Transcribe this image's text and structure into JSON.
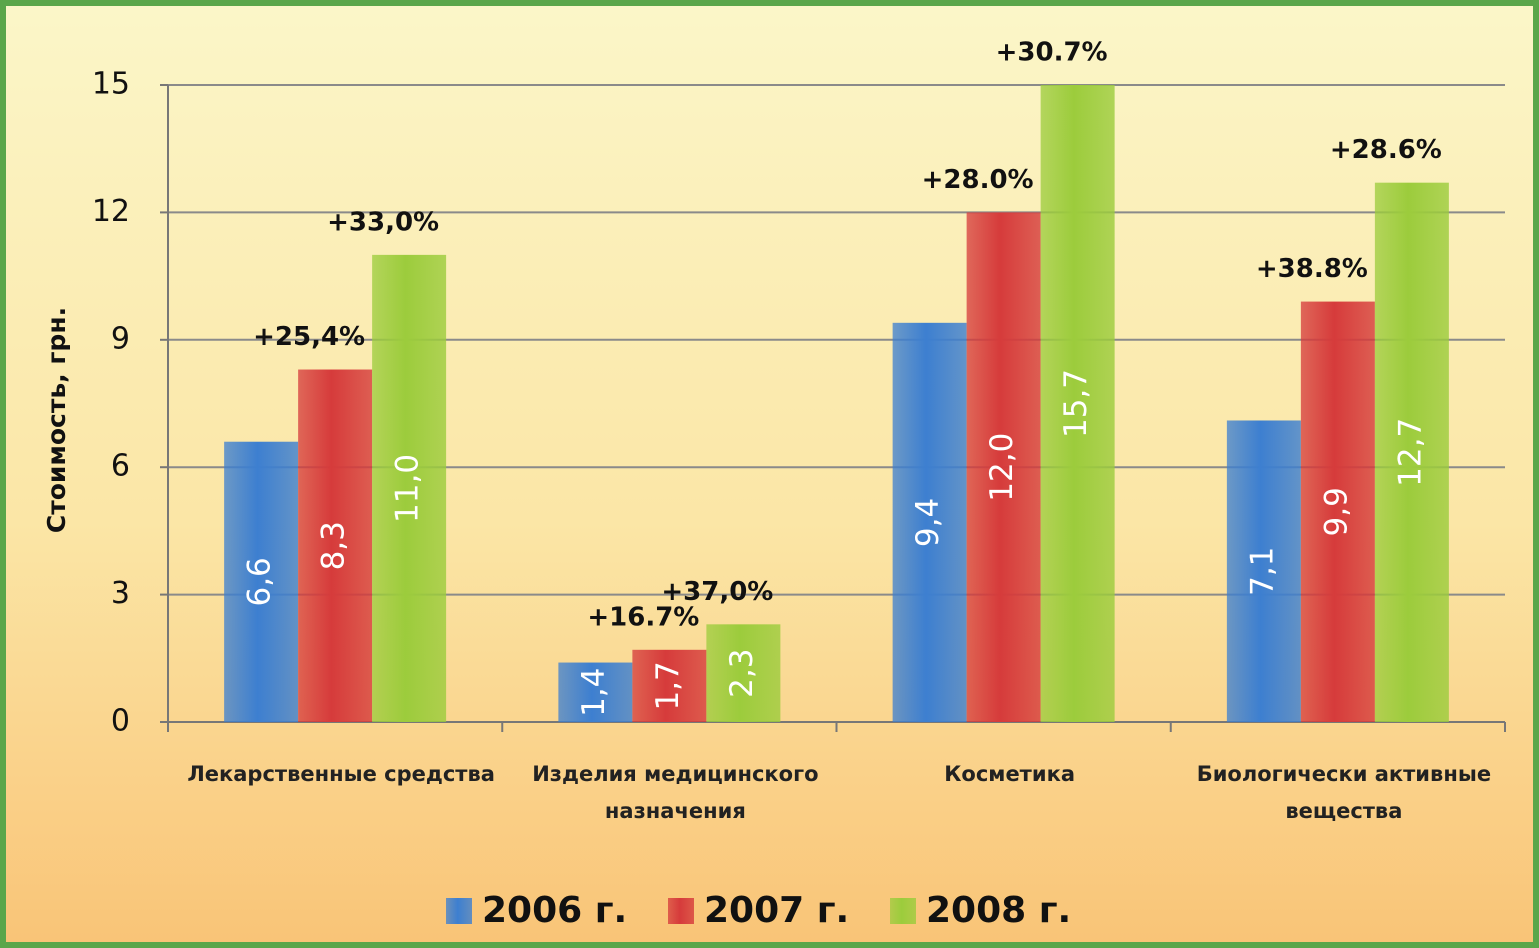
{
  "chart_data": {
    "type": "bar",
    "y_label": "Стоимость, грн.",
    "categories": [
      "Лекарственные средства",
      "Изделия медицинского\nназначения",
      "Косметика",
      "Биологически активные\nвещества"
    ],
    "series": [
      {
        "name": "2006 г.",
        "color": "#3d7fd0",
        "values": [
          6.6,
          1.4,
          9.4,
          7.1
        ],
        "value_labels": [
          "6,6",
          "1,4",
          "9,4",
          "7,1"
        ]
      },
      {
        "name": "2007 г.",
        "color": "#d63b3b",
        "values": [
          8.3,
          1.7,
          12.0,
          9.9
        ],
        "value_labels": [
          "8,3",
          "1,7",
          "12,0",
          "9,9"
        ],
        "annotations": [
          "+25,4%",
          "+16.7%",
          "+28.0%",
          "+38.8%"
        ]
      },
      {
        "name": "2008 г.",
        "color": "#9ccc3c",
        "values": [
          11.0,
          2.3,
          15.7,
          12.7
        ],
        "value_labels": [
          "11,0",
          "2,3",
          "15,7",
          "12,7"
        ],
        "annotations": [
          "+33,0%",
          "+37,0%",
          "+30.7%",
          "+28.6%"
        ]
      }
    ],
    "ylim": [
      0,
      15
    ],
    "yticks": [
      0,
      3,
      6,
      9,
      12,
      15
    ],
    "grid": true,
    "legend": "bottom"
  }
}
